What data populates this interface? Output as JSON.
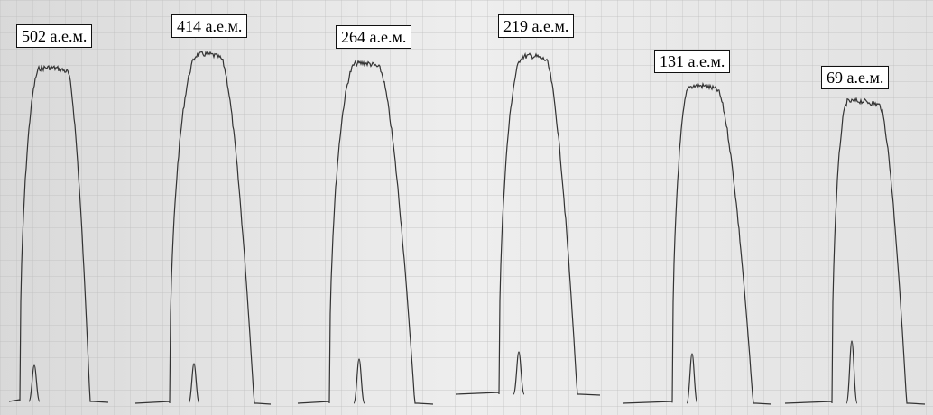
{
  "labels": [
    "502 а.е.м.",
    "414 а.е.м.",
    "264 а.е.м.",
    "219 а.е.м.",
    "131 а.е.м.",
    "69 а.е.м."
  ]
}
